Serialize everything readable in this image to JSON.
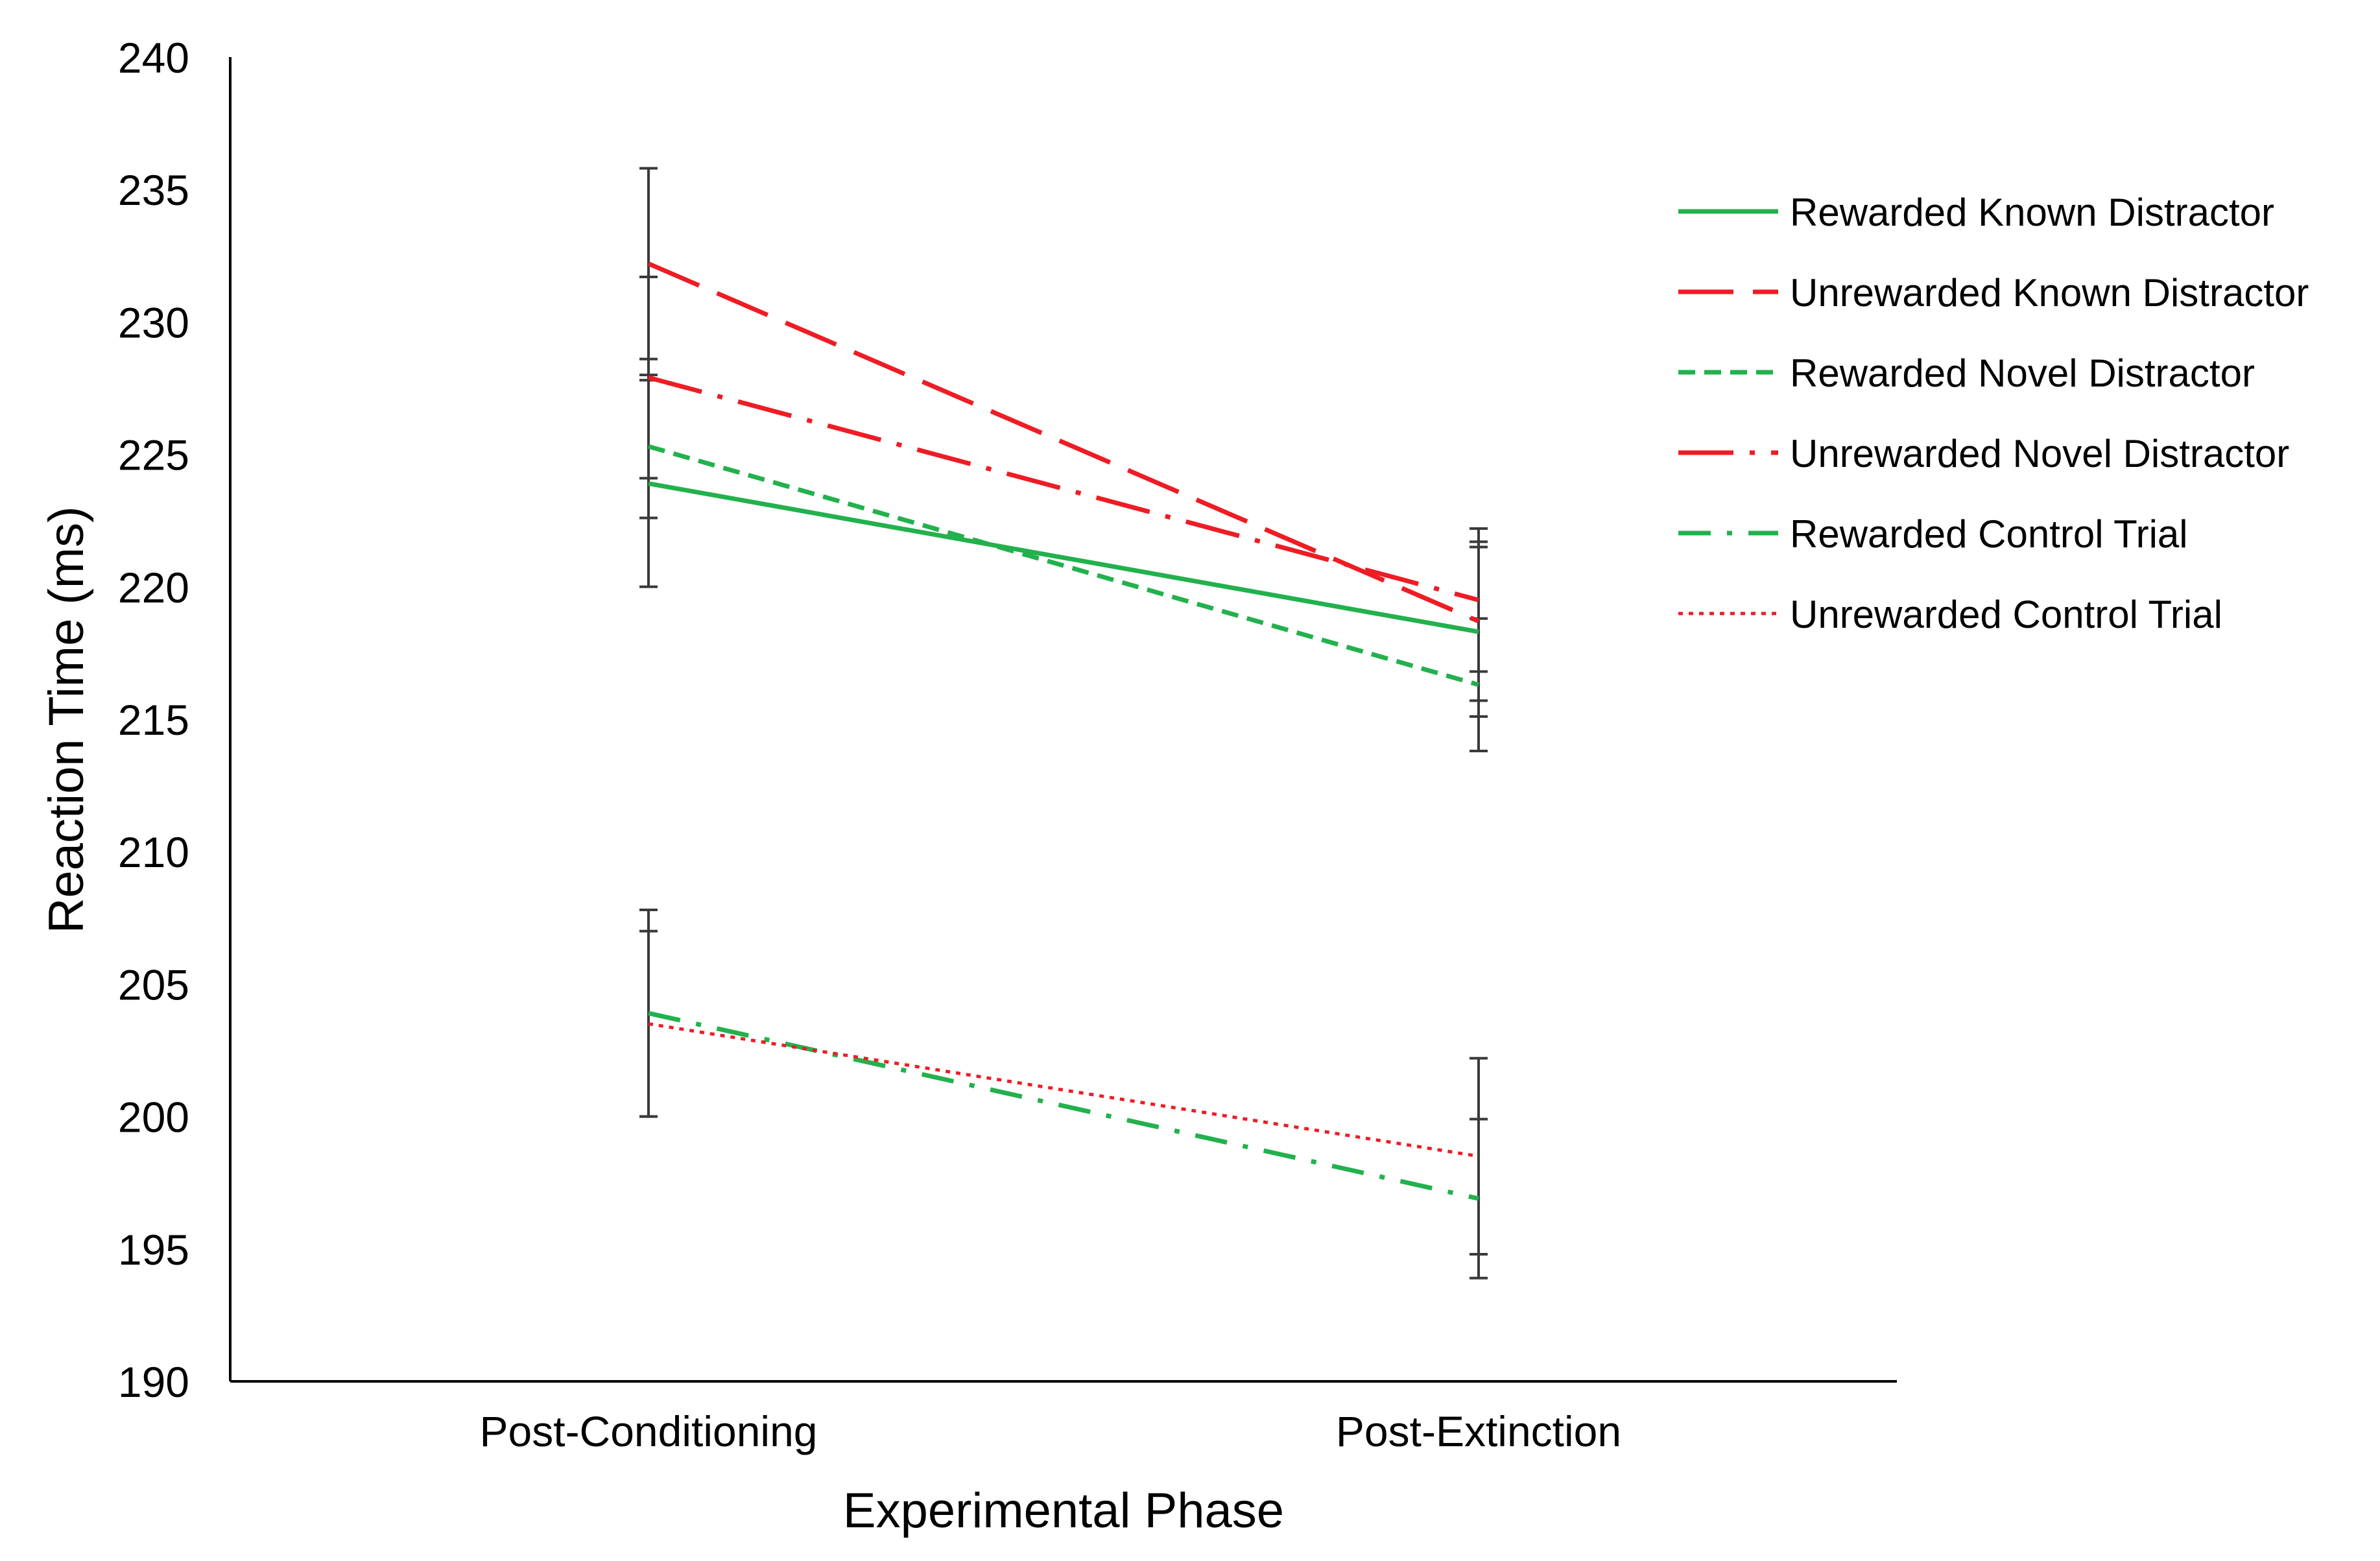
{
  "chart_data": {
    "type": "line",
    "title": "",
    "xlabel": "Experimental Phase",
    "ylabel": "Reaction Time (ms)",
    "categories": [
      "Post-Conditioning",
      "Post-Extinction"
    ],
    "ylim": [
      190,
      240
    ],
    "yticks": [
      190,
      195,
      200,
      205,
      210,
      215,
      220,
      225,
      230,
      235,
      240
    ],
    "grid": false,
    "legend_position": "right",
    "series": [
      {
        "name": "Rewarded Known Distractor",
        "values": [
          223.9,
          218.3
        ],
        "errors": [
          3.9,
          3.2
        ],
        "color": "#22b14c",
        "style": "solid"
      },
      {
        "name": "Unrewarded Known Distractor",
        "values": [
          232.2,
          218.7
        ],
        "errors": [
          3.6,
          3.0
        ],
        "color": "#ee1c24",
        "style": "long-dash"
      },
      {
        "name": "Rewarded Novel Distractor",
        "values": [
          225.3,
          216.3
        ],
        "errors": [
          2.7,
          2.5
        ],
        "color": "#22b14c",
        "style": "short-dash"
      },
      {
        "name": "Unrewarded Novel Distractor",
        "values": [
          227.9,
          219.5
        ],
        "errors": [
          3.8,
          2.7
        ],
        "color": "#ee1c24",
        "style": "long-dash-dot"
      },
      {
        "name": "Rewarded Control Trial",
        "values": [
          203.9,
          196.9
        ],
        "errors": [
          3.9,
          3.0
        ],
        "color": "#22b14c",
        "style": "dash-dot"
      },
      {
        "name": "Unrewarded Control Trial",
        "values": [
          203.5,
          198.5
        ],
        "errors": [
          3.5,
          3.7
        ],
        "color": "#ee1c24",
        "style": "dotted"
      }
    ]
  }
}
